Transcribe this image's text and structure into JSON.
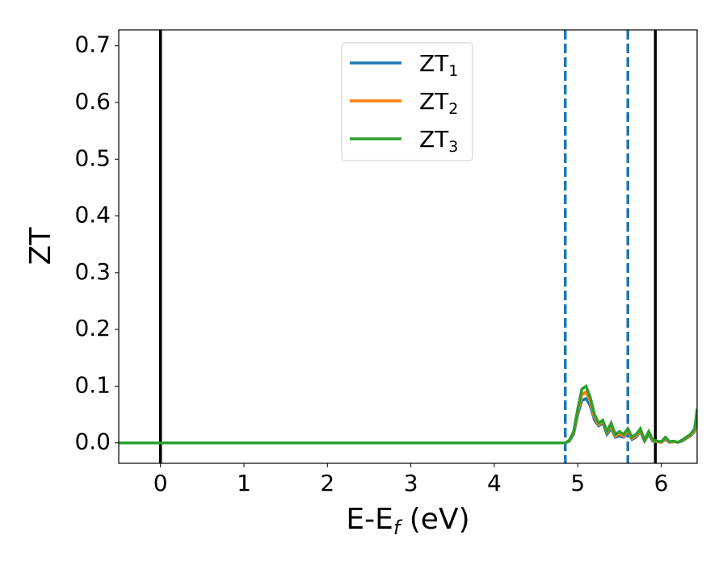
{
  "chart_data": {
    "type": "line",
    "xlabel": [
      "E-E",
      "f",
      " (eV)"
    ],
    "ylabel": "ZT",
    "x": [
      -0.5,
      4.8,
      4.85,
      4.9,
      4.95,
      5.0,
      5.05,
      5.1,
      5.15,
      5.2,
      5.25,
      5.3,
      5.35,
      5.4,
      5.45,
      5.5,
      5.55,
      5.6,
      5.65,
      5.7,
      5.75,
      5.8,
      5.85,
      5.9,
      5.95,
      6.0,
      6.05,
      6.1,
      6.15,
      6.2,
      6.25,
      6.3,
      6.35,
      6.4,
      6.43
    ],
    "series": [
      {
        "name": [
          "ZT",
          "1"
        ],
        "color": "#1f77b4",
        "values": [
          0,
          0,
          0,
          0.003,
          0.015,
          0.05,
          0.075,
          0.078,
          0.065,
          0.04,
          0.03,
          0.035,
          0.015,
          0.025,
          0.01,
          0.012,
          0.01,
          0.018,
          0.006,
          0.01,
          0.02,
          0.003,
          0.015,
          0.003,
          0.002,
          0.001,
          0.006,
          0.001,
          0.002,
          0.001,
          0.003,
          0.008,
          0.012,
          0.02,
          0.05
        ]
      },
      {
        "name": [
          "ZT",
          "2"
        ],
        "color": "#ff7f0e",
        "values": [
          0,
          0,
          0,
          0.004,
          0.018,
          0.055,
          0.085,
          0.09,
          0.072,
          0.045,
          0.032,
          0.038,
          0.018,
          0.03,
          0.012,
          0.016,
          0.012,
          0.022,
          0.008,
          0.012,
          0.022,
          0.004,
          0.018,
          0.004,
          0.002,
          0.001,
          0.008,
          0.001,
          0.002,
          0.001,
          0.004,
          0.009,
          0.013,
          0.022,
          0.055
        ]
      },
      {
        "name": [
          "ZT",
          "3"
        ],
        "color": "#2ca02c",
        "values": [
          0,
          0,
          0,
          0.005,
          0.02,
          0.06,
          0.095,
          0.1,
          0.08,
          0.05,
          0.035,
          0.04,
          0.02,
          0.035,
          0.015,
          0.02,
          0.015,
          0.025,
          0.01,
          0.015,
          0.025,
          0.005,
          0.02,
          0.005,
          0.003,
          0.002,
          0.01,
          0.002,
          0.003,
          0.001,
          0.005,
          0.01,
          0.015,
          0.025,
          0.06
        ]
      }
    ],
    "vlines": [
      {
        "x": 0,
        "color": "#000000",
        "dashed": false
      },
      {
        "x": 4.85,
        "color": "#1f77b4",
        "dashed": true
      },
      {
        "x": 5.6,
        "color": "#1f77b4",
        "dashed": true
      },
      {
        "x": 5.93,
        "color": "#000000",
        "dashed": false
      }
    ],
    "xlim": [
      -0.5,
      6.43
    ],
    "ylim": [
      -0.036,
      0.728
    ],
    "xticks": [
      0,
      1,
      2,
      3,
      4,
      5,
      6
    ],
    "yticks": [
      {
        "value": 0,
        "label": "0.0"
      },
      0.1,
      0.2,
      0.3,
      0.4,
      0.5,
      0.6,
      0.7
    ],
    "legend": "upper center",
    "grid": false
  }
}
